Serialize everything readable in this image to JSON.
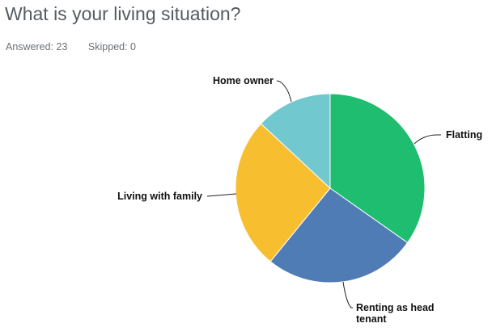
{
  "header": {
    "title": "What is your living situation?",
    "answered": "Answered: 23",
    "skipped": "Skipped: 0"
  },
  "chart_data": {
    "type": "pie",
    "title": "",
    "start_angle_deg": 0,
    "direction": "clockwise",
    "slices": [
      {
        "label": "Flatting",
        "value": 8,
        "color": "#1ebd6f"
      },
      {
        "label": "Renting as head tenant",
        "value": 6,
        "color": "#507cb6"
      },
      {
        "label": "Living with family",
        "value": 6,
        "color": "#f7bf30"
      },
      {
        "label": "Home owner",
        "value": 3,
        "color": "#71c8ce"
      }
    ]
  }
}
